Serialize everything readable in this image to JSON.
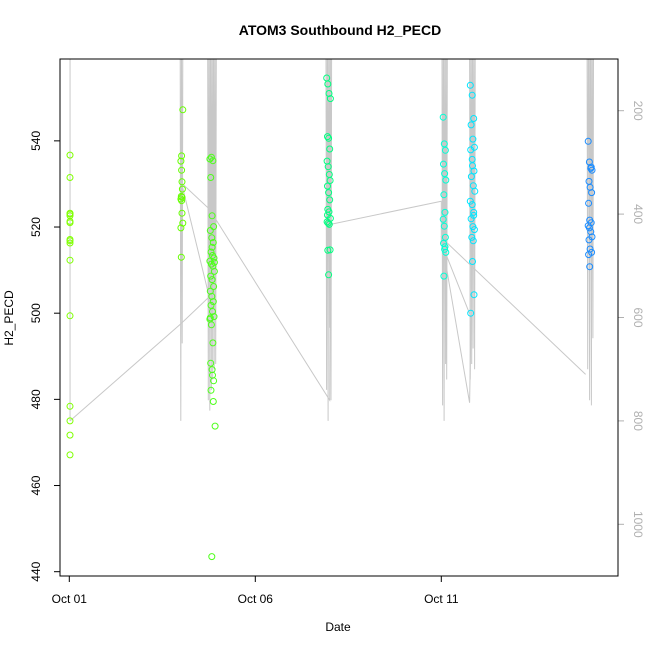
{
  "chart_data": {
    "type": "scatter",
    "title": "ATOM3 Southbound H2_PECD",
    "xlabel": "Date",
    "ylabel": "H2_PECD",
    "x_ticks": [
      {
        "day": 1,
        "label": "Oct 01"
      },
      {
        "day": 6,
        "label": "Oct 06"
      },
      {
        "day": 11,
        "label": "Oct 11"
      }
    ],
    "xlim": [
      "Sep 30 18:00",
      "Oct 15 18:00"
    ],
    "ylim": [
      439,
      559
    ],
    "y_ticks": [
      440,
      460,
      480,
      500,
      520,
      540
    ],
    "right_axis": {
      "label": "",
      "reversed": true,
      "ticks": [
        200,
        400,
        600,
        800,
        1000
      ],
      "lim": [
        100,
        1100
      ],
      "color": "#b0b0b0"
    },
    "grid": false,
    "legend": "none",
    "profile_line_color": "#c8c8c8",
    "series": [
      {
        "color": "#7fff00",
        "x": [
          1.02,
          1.02,
          1.02,
          1.02,
          1.02,
          1.02,
          1.02,
          1.02,
          1.02,
          1.02,
          1.02,
          1.02,
          1.02,
          1.02,
          1.02,
          1.02
        ],
        "y": [
          536.7,
          531.5,
          523.2,
          522.6,
          521.3,
          517.1,
          516.3,
          512.3,
          499.4,
          478.4,
          475.0,
          471.7,
          467.1,
          523.0,
          521.0,
          516.8
        ]
      },
      {
        "color": "#66ff00",
        "x": [
          4.05,
          4.02,
          4.0,
          4.03,
          4.04,
          4.01,
          4.0,
          4.02,
          4.03,
          4.05,
          4.0,
          4.01,
          4.03,
          4.02
        ],
        "y": [
          547.2,
          536.5,
          535.3,
          530.5,
          528.8,
          527.1,
          526.5,
          526.1,
          523.2,
          520.9,
          519.8,
          513.0,
          526.9,
          533.2
        ]
      },
      {
        "color": "#4dff1a",
        "x": [
          4.78,
          4.82,
          4.86,
          4.8,
          4.84,
          4.88,
          4.79,
          4.83,
          4.87,
          4.81,
          4.85,
          4.89,
          4.78,
          4.82,
          4.86,
          4.9,
          4.8,
          4.84,
          4.88,
          4.79,
          4.83,
          4.87,
          4.81,
          4.85,
          4.89,
          4.78,
          4.82,
          4.86,
          4.8,
          4.84,
          4.88,
          4.92,
          4.83,
          4.87,
          4.81,
          4.85,
          4.79,
          4.9,
          4.84
        ],
        "y": [
          535.8,
          536.2,
          535.4,
          531.5,
          522.6,
          520.1,
          519.2,
          517.5,
          516.4,
          514.2,
          513.4,
          512.8,
          512.1,
          511.4,
          510.9,
          509.7,
          508.6,
          507.8,
          506.2,
          505.1,
          503.9,
          502.7,
          501.8,
          500.4,
          499.2,
          498.6,
          497.3,
          493.1,
          488.4,
          486.9,
          484.3,
          473.8,
          443.5,
          479.5,
          482.1,
          485.6,
          498.9,
          511.8,
          515.3
        ]
      },
      {
        "color": "#00ff80",
        "x": [
          7.92,
          7.95,
          7.98,
          8.02,
          7.94,
          7.97,
          8.0,
          7.93,
          7.96,
          7.99,
          8.01,
          7.94,
          7.97,
          8.0,
          7.95,
          7.98,
          8.02,
          7.93,
          7.96,
          7.99,
          7.95,
          8.01,
          7.97,
          7.94
        ],
        "y": [
          554.6,
          553.2,
          551.0,
          549.8,
          541.0,
          540.6,
          538.1,
          535.3,
          534.0,
          532.2,
          530.8,
          529.5,
          528.0,
          526.3,
          524.1,
          523.5,
          522.0,
          521.2,
          520.9,
          520.6,
          514.6,
          514.7,
          508.9,
          522.8
        ]
      },
      {
        "color": "#00ffd5",
        "x": [
          11.05,
          11.08,
          11.11,
          11.06,
          11.09,
          11.12,
          11.07,
          11.1,
          11.05,
          11.08,
          11.11,
          11.06,
          11.09,
          11.12,
          11.07,
          11.1
        ],
        "y": [
          545.5,
          539.3,
          537.8,
          534.6,
          532.4,
          530.9,
          527.5,
          523.4,
          521.8,
          520.2,
          517.6,
          516.2,
          514.8,
          514.1,
          508.6,
          515.4
        ]
      },
      {
        "color": "#00e5ff",
        "x": [
          11.78,
          11.83,
          11.87,
          11.8,
          11.85,
          11.89,
          11.79,
          11.84,
          11.88,
          11.81,
          11.86,
          11.9,
          11.78,
          11.83,
          11.87,
          11.8,
          11.85,
          11.89,
          11.82,
          11.86,
          11.84,
          11.88,
          11.79,
          11.83,
          11.87
        ],
        "y": [
          552.9,
          550.6,
          545.2,
          543.7,
          540.4,
          538.5,
          537.9,
          534.2,
          533.0,
          531.7,
          529.6,
          528.3,
          526.0,
          525.2,
          523.4,
          521.9,
          520.1,
          519.4,
          517.6,
          516.8,
          512.0,
          504.3,
          500.0,
          535.7,
          522.7
        ]
      },
      {
        "color": "#1a8cff",
        "x": [
          14.95,
          14.98,
          15.02,
          15.05,
          14.97,
          15.0,
          15.04,
          14.96,
          14.99,
          15.03,
          14.95,
          14.98,
          15.02,
          15.05,
          14.97,
          15.0,
          15.04,
          14.96,
          14.99,
          15.03
        ],
        "y": [
          539.9,
          535.1,
          533.6,
          533.2,
          530.6,
          529.2,
          528.0,
          525.5,
          521.6,
          521.0,
          520.3,
          519.8,
          518.9,
          517.7,
          517.0,
          514.9,
          514.1,
          513.6,
          510.8,
          533.9
        ]
      }
    ]
  }
}
